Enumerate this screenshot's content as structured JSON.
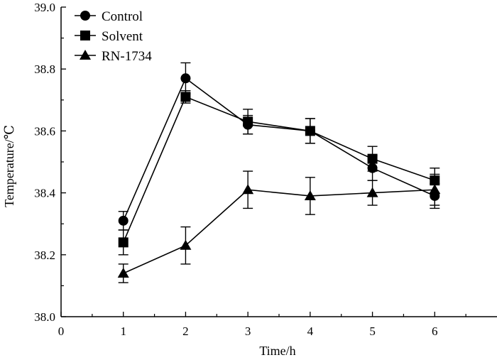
{
  "chart_data": {
    "type": "line",
    "title": "",
    "xlabel": "Time/h",
    "ylabel": "Temperature/℃",
    "x": [
      1,
      2,
      3,
      4,
      5,
      6
    ],
    "xlim": [
      0,
      7
    ],
    "ylim": [
      38.0,
      39.0
    ],
    "xticks": [
      0,
      1,
      2,
      3,
      4,
      5,
      6
    ],
    "xtick_labels": [
      "0",
      "1",
      "2",
      "3",
      "4",
      "5",
      "6"
    ],
    "yticks": [
      38.0,
      38.2,
      38.4,
      38.6,
      38.8,
      39.0
    ],
    "ytick_labels": [
      "38.0",
      "38.2",
      "38.4",
      "38.6",
      "38.8",
      "39.0"
    ],
    "grid": false,
    "legend_position": "top-left",
    "series": [
      {
        "name": "Control",
        "marker": "circle",
        "color": "#000000",
        "values": [
          38.31,
          38.77,
          38.62,
          38.6,
          38.48,
          38.39
        ],
        "errors": [
          0.03,
          0.05,
          0.03,
          0.04,
          0.04,
          0.04
        ]
      },
      {
        "name": "Solvent",
        "marker": "square",
        "color": "#000000",
        "values": [
          38.24,
          38.71,
          38.63,
          38.6,
          38.51,
          38.44
        ],
        "errors": [
          0.04,
          0.02,
          0.04,
          0.04,
          0.04,
          0.04
        ]
      },
      {
        "name": "RN-1734",
        "marker": "triangle",
        "color": "#000000",
        "values": [
          38.14,
          38.23,
          38.41,
          38.39,
          38.4,
          38.41
        ],
        "errors": [
          0.03,
          0.06,
          0.06,
          0.06,
          0.04,
          0.05
        ]
      }
    ]
  }
}
